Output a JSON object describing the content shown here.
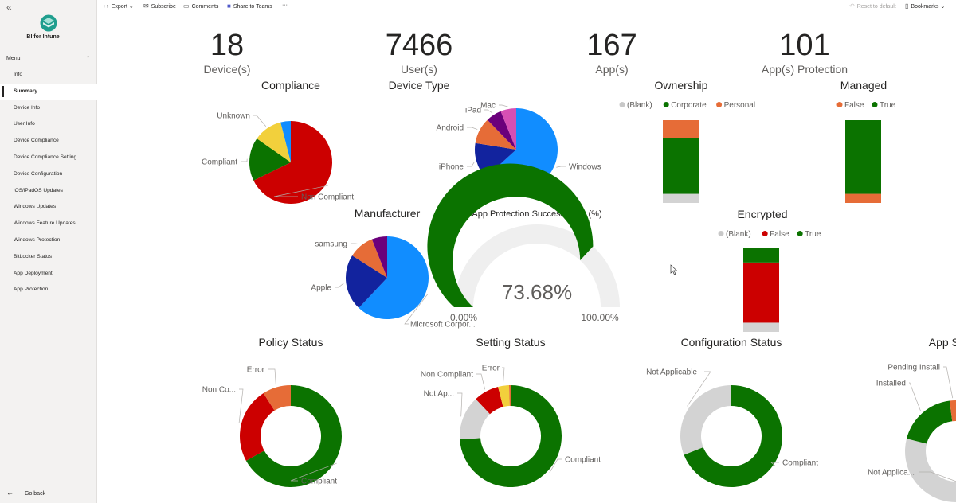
{
  "sidebar": {
    "collapse_icon": "«",
    "app_name": "BI for Intune",
    "menu_label": "Menu",
    "menu_items": [
      "Info",
      "Summary",
      "Device Info",
      "User Info",
      "Device Compliance",
      "Device Compliance Setting",
      "Device Configuration",
      "iOS/iPadOS Updates",
      "Windows Updates",
      "Windows Feature Updates",
      "Windows Protection",
      "BitLocker Status",
      "App Deployment",
      "App Protection"
    ],
    "active_item": "Summary",
    "go_back": "Go back"
  },
  "toolbar": {
    "export": "Export",
    "subscribe": "Subscribe",
    "comments": "Comments",
    "share": "Share to Teams",
    "more": "···",
    "reset": "Reset to default",
    "bookmarks": "Bookmarks"
  },
  "colors": {
    "green": "#0b7300",
    "red": "#cc0000",
    "orange": "#e66c37",
    "yellow": "#f2d03c",
    "blue": "#118dff",
    "navy": "#12239e",
    "purple": "#6b007b",
    "magenta": "#d64fb4",
    "grey": "#d3d3d3",
    "gauge_bg": "#efefef"
  },
  "kpis": [
    {
      "value": "18",
      "label": "Device(s)"
    },
    {
      "value": "7466",
      "label": "User(s)"
    },
    {
      "value": "167",
      "label": "App(s)"
    },
    {
      "value": "101",
      "label": "App(s) Protection"
    }
  ],
  "chart_data": [
    {
      "id": "compliance",
      "type": "pie",
      "title": "Compliance",
      "slices": [
        {
          "label": "Non Compliant",
          "value": 12,
          "color": "#cc0000"
        },
        {
          "label": "Compliant",
          "value": 3,
          "color": "#0b7300"
        },
        {
          "label": "Unknown",
          "value": 2,
          "color": "#f2d03c"
        },
        {
          "label": "",
          "value": 0.7,
          "color": "#118dff"
        }
      ]
    },
    {
      "id": "device-type",
      "type": "pie",
      "title": "Device Type",
      "slices": [
        {
          "label": "Windows",
          "value": 62,
          "color": "#118dff"
        },
        {
          "label": "iPhone",
          "value": 14,
          "color": "#12239e"
        },
        {
          "label": "Android",
          "value": 10,
          "color": "#e66c37"
        },
        {
          "label": "iPad",
          "value": 6,
          "color": "#6b007b"
        },
        {
          "label": "Mac",
          "value": 6,
          "color": "#d64fb4"
        }
      ]
    },
    {
      "id": "manufacturer",
      "type": "pie",
      "title": "Manufacturer",
      "slices": [
        {
          "label": "Microsoft Corpor...",
          "value": 62,
          "color": "#118dff"
        },
        {
          "label": "Apple",
          "value": 22,
          "color": "#12239e"
        },
        {
          "label": "samsung",
          "value": 10,
          "color": "#e66c37"
        },
        {
          "label": "",
          "value": 6,
          "color": "#6b007b"
        }
      ]
    },
    {
      "id": "ownership",
      "type": "bar",
      "title": "Ownership",
      "stacked": true,
      "legend": [
        {
          "label": "(Blank)",
          "color": "#c8c8c8"
        },
        {
          "label": "Corporate",
          "color": "#0b7300"
        },
        {
          "label": "Personal",
          "color": "#e66c37"
        }
      ],
      "values": [
        {
          "label": "(Blank)",
          "value": 11,
          "color": "#d3d3d3"
        },
        {
          "label": "Corporate",
          "value": 67,
          "color": "#0b7300"
        },
        {
          "label": "Personal",
          "value": 22,
          "color": "#e66c37"
        }
      ]
    },
    {
      "id": "managed",
      "type": "bar",
      "title": "Managed",
      "stacked": true,
      "legend": [
        {
          "label": "False",
          "color": "#e66c37"
        },
        {
          "label": "True",
          "color": "#0b7300"
        }
      ],
      "values": [
        {
          "label": "False",
          "value": 11,
          "color": "#e66c37"
        },
        {
          "label": "True",
          "value": 89,
          "color": "#0b7300"
        }
      ]
    },
    {
      "id": "encrypted",
      "type": "bar",
      "title": "Encrypted",
      "stacked": true,
      "legend": [
        {
          "label": "(Blank)",
          "color": "#c8c8c8"
        },
        {
          "label": "False",
          "color": "#cc0000"
        },
        {
          "label": "True",
          "color": "#0b7300"
        }
      ],
      "values": [
        {
          "label": "(Blank)",
          "value": 11,
          "color": "#d3d3d3"
        },
        {
          "label": "False",
          "value": 72,
          "color": "#cc0000"
        },
        {
          "label": "True",
          "value": 17,
          "color": "#0b7300"
        }
      ]
    },
    {
      "id": "gauge",
      "type": "gauge",
      "title": "App Protection Success Rate (%)",
      "value": 73.68,
      "value_label": "73.68%",
      "min_label": "0.00%",
      "max_label": "100.00%"
    },
    {
      "id": "policy-status",
      "type": "donut",
      "title": "Policy Status",
      "slices": [
        {
          "label": "Compliant",
          "value": 67,
          "color": "#0b7300"
        },
        {
          "label": "Non Co...",
          "value": 24,
          "color": "#cc0000"
        },
        {
          "label": "Error",
          "value": 9,
          "color": "#e66c37"
        }
      ]
    },
    {
      "id": "setting-status",
      "type": "donut",
      "title": "Setting Status",
      "slices": [
        {
          "label": "Compliant",
          "value": 74,
          "color": "#0b7300"
        },
        {
          "label": "Not Ap...",
          "value": 14,
          "color": "#d3d3d3"
        },
        {
          "label": "Non Compliant",
          "value": 8,
          "color": "#cc0000"
        },
        {
          "label": "Error",
          "value": 3.5,
          "color": "#f2d03c"
        },
        {
          "label": "",
          "value": 0.5,
          "color": "#e66c37"
        }
      ]
    },
    {
      "id": "configuration-status",
      "type": "donut",
      "title": "Configuration Status",
      "slices": [
        {
          "label": "Compliant",
          "value": 69,
          "color": "#0b7300"
        },
        {
          "label": "Not Applicable",
          "value": 31,
          "color": "#d3d3d3"
        }
      ]
    },
    {
      "id": "app-status",
      "type": "donut",
      "title": "App Status",
      "slices": [
        {
          "label": "Not Applica...",
          "value": 79,
          "color": "#d3d3d3"
        },
        {
          "label": "Installed",
          "value": 19,
          "color": "#0b7300"
        },
        {
          "label": "Pending Install",
          "value": 2,
          "color": "#e66c37"
        }
      ]
    }
  ]
}
